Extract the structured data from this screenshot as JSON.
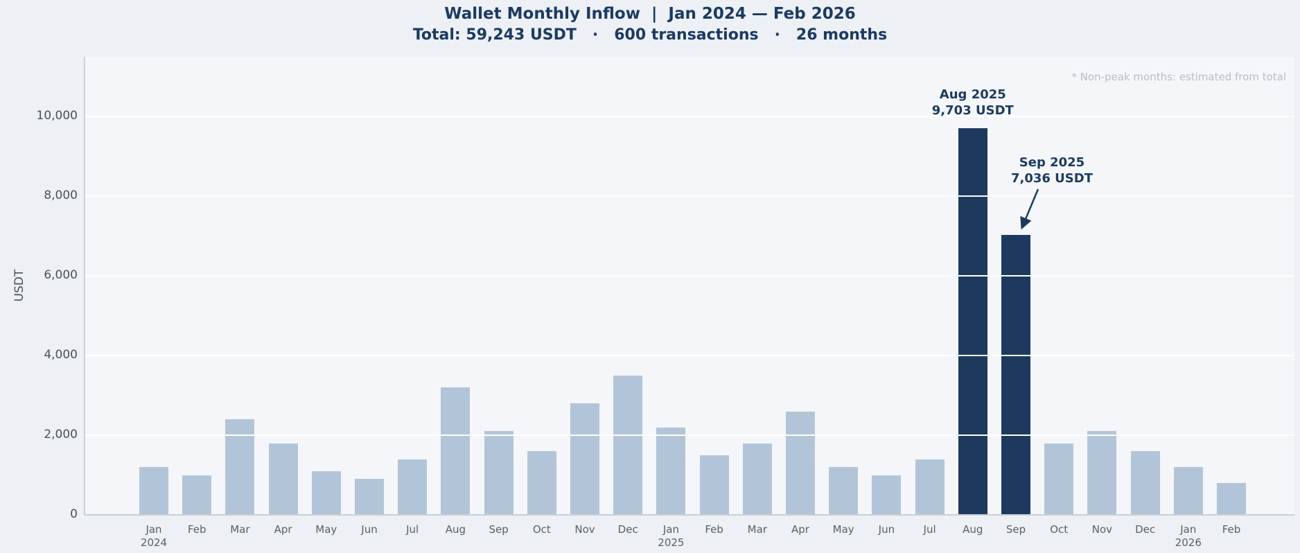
{
  "header": {
    "title": "Wallet Monthly Inflow  |  Jan 2024 — Feb 2026",
    "subtitle": "Total: 59,243 USDT   ·   600 transactions   ·   26 months"
  },
  "note": "* Non-peak months: estimated from total",
  "chart_data": {
    "type": "bar",
    "title": "Wallet Monthly Inflow | Jan 2024 — Feb 2026",
    "subtitle": "Total: 59,243 USDT · 600 transactions · 26 months",
    "xlabel": "",
    "ylabel": "USDT",
    "ylim": [
      0,
      11500
    ],
    "yticks": [
      0,
      2000,
      4000,
      6000,
      8000,
      10000
    ],
    "ytick_labels": [
      "0",
      "2,000",
      "4,000",
      "6,000",
      "8,000",
      "10,000"
    ],
    "grid": true,
    "legend": false,
    "bar_color": "#b2c5d8",
    "highlight_color": "#1d3a5e",
    "months": [
      {
        "month": "Jan",
        "year": "2024",
        "value": 1200
      },
      {
        "month": "Feb",
        "value": 1000
      },
      {
        "month": "Mar",
        "value": 2400
      },
      {
        "month": "Apr",
        "value": 1800
      },
      {
        "month": "May",
        "value": 1100
      },
      {
        "month": "Jun",
        "value": 900
      },
      {
        "month": "Jul",
        "value": 1400
      },
      {
        "month": "Aug",
        "value": 3200
      },
      {
        "month": "Sep",
        "value": 2100
      },
      {
        "month": "Oct",
        "value": 1600
      },
      {
        "month": "Nov",
        "value": 2800
      },
      {
        "month": "Dec",
        "value": 3500
      },
      {
        "month": "Jan",
        "year": "2025",
        "value": 2200
      },
      {
        "month": "Feb",
        "value": 1500
      },
      {
        "month": "Mar",
        "value": 1800
      },
      {
        "month": "Apr",
        "value": 2600
      },
      {
        "month": "May",
        "value": 1200
      },
      {
        "month": "Jun",
        "value": 1000
      },
      {
        "month": "Jul",
        "value": 1400
      },
      {
        "month": "Aug",
        "value": 9703,
        "highlight": true
      },
      {
        "month": "Sep",
        "value": 7036,
        "highlight": true
      },
      {
        "month": "Oct",
        "value": 1800
      },
      {
        "month": "Nov",
        "value": 2100
      },
      {
        "month": "Dec",
        "value": 1600
      },
      {
        "month": "Jan",
        "year": "2026",
        "value": 1200
      },
      {
        "month": "Feb",
        "value": 800
      }
    ],
    "annotations": [
      {
        "index": 19,
        "lines": [
          "Aug 2025",
          "9,703 USDT"
        ],
        "arrow": false
      },
      {
        "index": 20,
        "lines": [
          "Sep 2025",
          "7,036 USDT"
        ],
        "arrow": true
      }
    ],
    "note": "* Non-peak months: estimated from total"
  }
}
